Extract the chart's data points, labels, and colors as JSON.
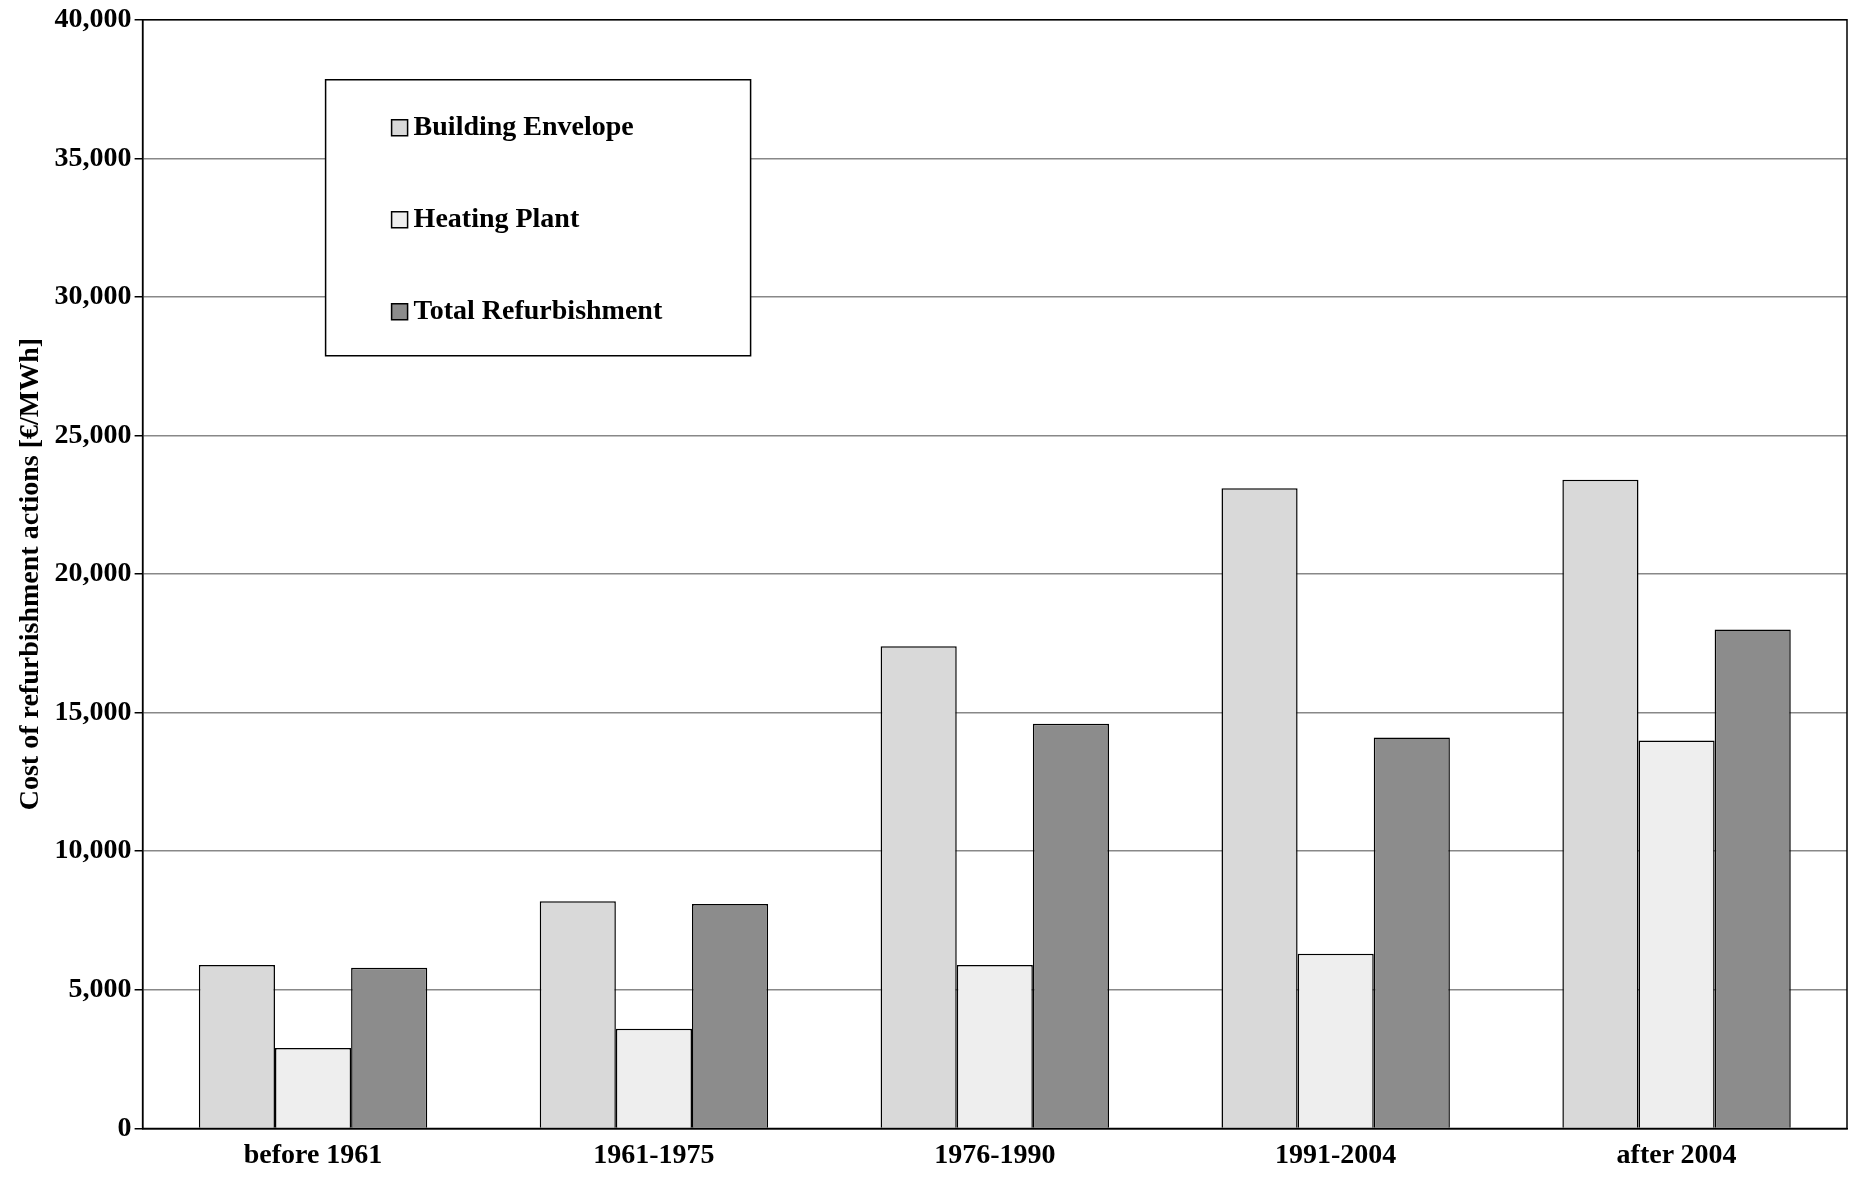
{
  "chart_data": {
    "type": "bar",
    "ylabel": "Cost of refurbishment actions [€/MWh]",
    "categories": [
      "before 1961",
      "1961-1975",
      "1976-1990",
      "1991-2004",
      "after 2004"
    ],
    "series": [
      {
        "name": "Building Envelope",
        "color": "#d9d9d9",
        "values": [
          5900,
          8200,
          17400,
          23100,
          23400
        ]
      },
      {
        "name": "Heating Plant",
        "color": "#eeeeee",
        "values": [
          2900,
          3600,
          5900,
          6300,
          14000
        ]
      },
      {
        "name": "Total Refurbishment",
        "color": "#8c8c8c",
        "values": [
          5800,
          8100,
          14600,
          14100,
          18000
        ]
      }
    ],
    "ylim": [
      0,
      40000
    ],
    "yticks": [
      {
        "value": 0,
        "label": "0"
      },
      {
        "value": 5000,
        "label": "5,000"
      },
      {
        "value": 10000,
        "label": "10,000"
      },
      {
        "value": 15000,
        "label": "15,000"
      },
      {
        "value": 20000,
        "label": "20,000"
      },
      {
        "value": 25000,
        "label": "25,000"
      },
      {
        "value": 30000,
        "label": "30,000"
      },
      {
        "value": 35000,
        "label": "35,000"
      },
      {
        "value": 40000,
        "label": "40,000"
      }
    ],
    "grid": "y",
    "legend": "top left"
  }
}
